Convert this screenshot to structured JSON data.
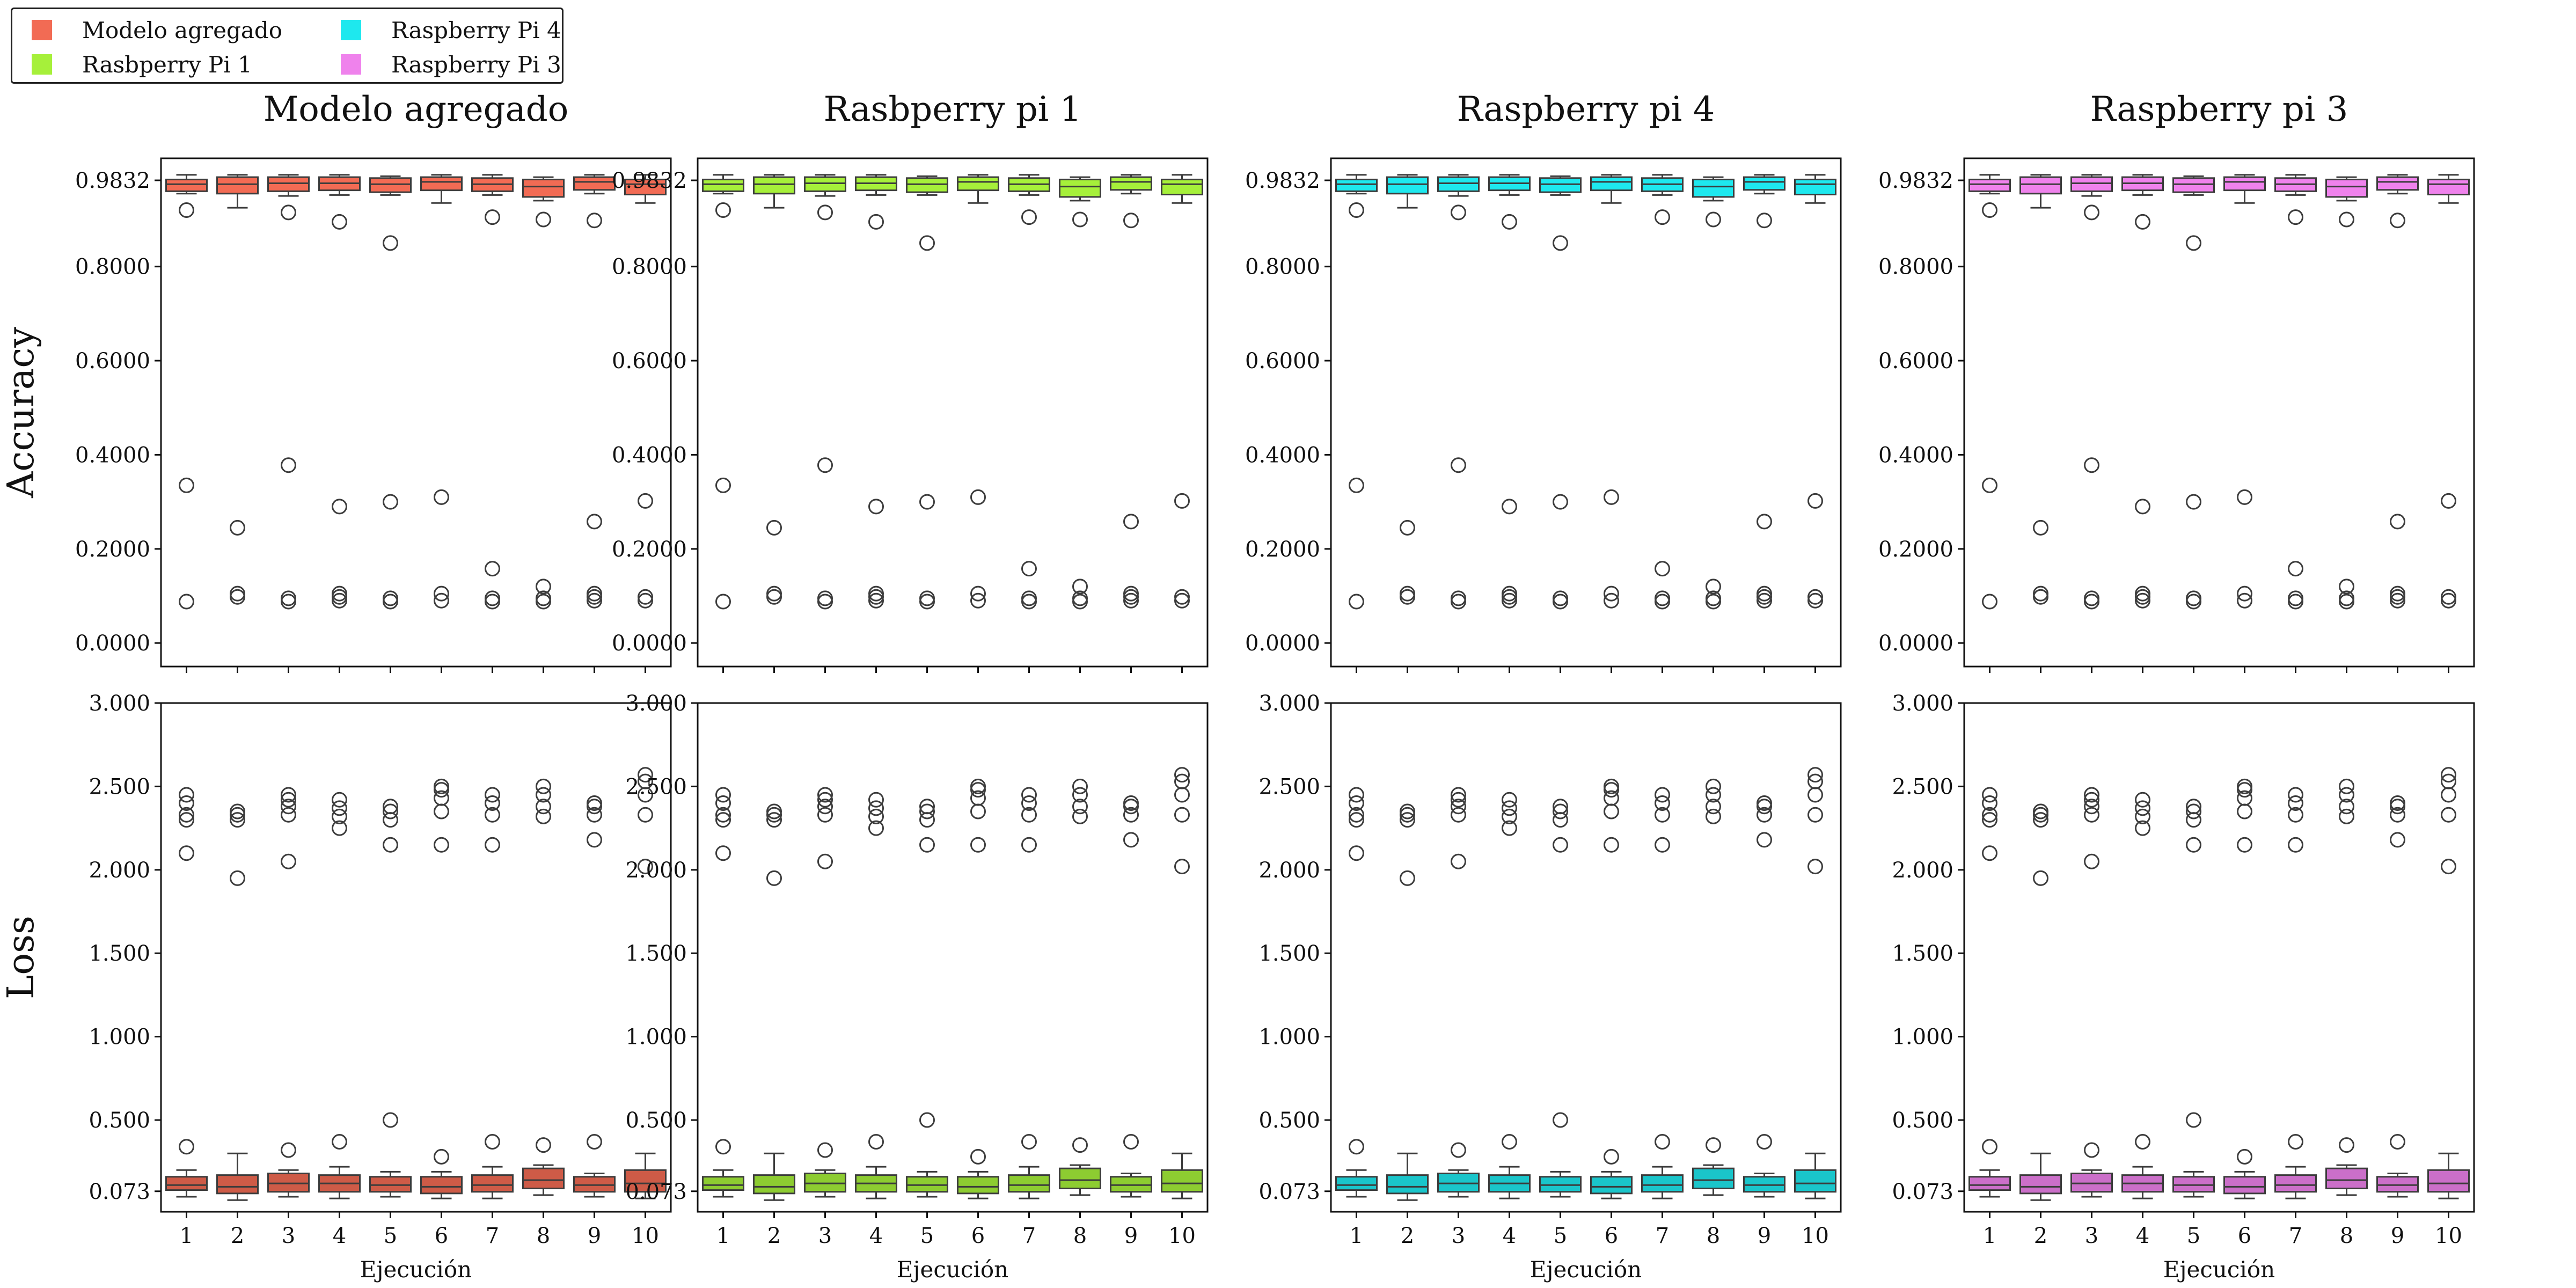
{
  "legend": {
    "items": [
      {
        "label": "Modelo agregado",
        "color": "#f26b54"
      },
      {
        "label": "Rasbperry Pi 1",
        "color": "#a6f03a"
      },
      {
        "label": "Raspberry Pi 4",
        "color": "#1ee8ee"
      },
      {
        "label": "Raspberry Pi 3",
        "color": "#ef82ec"
      }
    ]
  },
  "panel_titles": [
    "Modelo agregado",
    "Rasbperry pi 1",
    "Raspberry pi 4",
    "Raspberry pi 3"
  ],
  "row_labels": [
    "Accuracy",
    "Loss"
  ],
  "xlabel": "Ejecución",
  "chart_data": {
    "type": "box",
    "categories": [
      "1",
      "2",
      "3",
      "4",
      "5",
      "6",
      "7",
      "8",
      "9",
      "10"
    ],
    "accuracy": {
      "ylim": [
        -0.05,
        1.03
      ],
      "ticks": [
        0.0,
        0.2,
        0.4,
        0.6,
        0.8,
        0.9832
      ],
      "tick_labels": [
        "0.0000",
        "0.2000",
        "0.4000",
        "0.6000",
        "0.8000",
        "0.9832"
      ],
      "boxes": [
        {
          "q1": 0.96,
          "med": 0.975,
          "q3": 0.985,
          "lo": 0.955,
          "hi": 0.995,
          "outliers": [
            0.92,
            0.335,
            0.088
          ]
        },
        {
          "q1": 0.955,
          "med": 0.975,
          "q3": 0.99,
          "lo": 0.925,
          "hi": 0.995,
          "outliers": [
            0.245,
            0.105,
            0.098
          ]
        },
        {
          "q1": 0.96,
          "med": 0.977,
          "q3": 0.99,
          "lo": 0.95,
          "hi": 0.995,
          "outliers": [
            0.915,
            0.378,
            0.095,
            0.088
          ]
        },
        {
          "q1": 0.962,
          "med": 0.977,
          "q3": 0.99,
          "lo": 0.952,
          "hi": 0.995,
          "outliers": [
            0.895,
            0.29,
            0.105,
            0.098,
            0.09
          ]
        },
        {
          "q1": 0.958,
          "med": 0.975,
          "q3": 0.988,
          "lo": 0.952,
          "hi": 0.992,
          "outliers": [
            0.85,
            0.3,
            0.095,
            0.088
          ]
        },
        {
          "q1": 0.962,
          "med": 0.98,
          "q3": 0.99,
          "lo": 0.935,
          "hi": 0.995,
          "outliers": [
            0.31,
            0.105,
            0.09
          ]
        },
        {
          "q1": 0.96,
          "med": 0.975,
          "q3": 0.988,
          "lo": 0.952,
          "hi": 0.995,
          "outliers": [
            0.905,
            0.158,
            0.095,
            0.088
          ]
        },
        {
          "q1": 0.948,
          "med": 0.97,
          "q3": 0.985,
          "lo": 0.94,
          "hi": 0.99,
          "outliers": [
            0.9,
            0.12,
            0.095,
            0.088
          ]
        },
        {
          "q1": 0.963,
          "med": 0.98,
          "q3": 0.99,
          "lo": 0.955,
          "hi": 0.995,
          "outliers": [
            0.898,
            0.258,
            0.105,
            0.098,
            0.09
          ]
        },
        {
          "q1": 0.953,
          "med": 0.975,
          "q3": 0.985,
          "lo": 0.935,
          "hi": 0.995,
          "outliers": [
            0.302,
            0.098,
            0.09
          ]
        }
      ]
    },
    "loss": {
      "ylim": [
        -0.05,
        3.0
      ],
      "ticks": [
        0.073,
        0.5,
        1.0,
        1.5,
        2.0,
        2.5,
        3.0
      ],
      "tick_labels": [
        "0.073",
        "0.500",
        "1.000",
        "1.500",
        "2.000",
        "2.500",
        "3.000"
      ],
      "boxes": [
        {
          "q1": 0.08,
          "med": 0.11,
          "q3": 0.16,
          "lo": 0.04,
          "hi": 0.2,
          "outliers": [
            0.34,
            2.1,
            2.3,
            2.33,
            2.4,
            2.45
          ]
        },
        {
          "q1": 0.06,
          "med": 0.1,
          "q3": 0.17,
          "lo": 0.02,
          "hi": 0.3,
          "outliers": [
            1.95,
            2.3,
            2.33,
            2.35
          ]
        },
        {
          "q1": 0.07,
          "med": 0.12,
          "q3": 0.18,
          "lo": 0.04,
          "hi": 0.2,
          "outliers": [
            0.32,
            2.05,
            2.33,
            2.38,
            2.42,
            2.45
          ]
        },
        {
          "q1": 0.07,
          "med": 0.12,
          "q3": 0.17,
          "lo": 0.03,
          "hi": 0.22,
          "outliers": [
            0.37,
            2.25,
            2.32,
            2.37,
            2.42
          ]
        },
        {
          "q1": 0.07,
          "med": 0.11,
          "q3": 0.16,
          "lo": 0.04,
          "hi": 0.19,
          "outliers": [
            0.5,
            2.15,
            2.3,
            2.35,
            2.38
          ]
        },
        {
          "q1": 0.06,
          "med": 0.1,
          "q3": 0.16,
          "lo": 0.03,
          "hi": 0.19,
          "outliers": [
            0.28,
            2.15,
            2.35,
            2.43,
            2.48,
            2.5
          ]
        },
        {
          "q1": 0.07,
          "med": 0.11,
          "q3": 0.17,
          "lo": 0.03,
          "hi": 0.22,
          "outliers": [
            0.37,
            2.15,
            2.33,
            2.4,
            2.45
          ]
        },
        {
          "q1": 0.09,
          "med": 0.14,
          "q3": 0.21,
          "lo": 0.05,
          "hi": 0.23,
          "outliers": [
            0.35,
            2.32,
            2.38,
            2.45,
            2.5
          ]
        },
        {
          "q1": 0.07,
          "med": 0.11,
          "q3": 0.16,
          "lo": 0.04,
          "hi": 0.18,
          "outliers": [
            0.37,
            2.18,
            2.33,
            2.38,
            2.4
          ]
        },
        {
          "q1": 0.07,
          "med": 0.12,
          "q3": 0.2,
          "lo": 0.03,
          "hi": 0.3,
          "outliers": [
            2.02,
            2.33,
            2.45,
            2.53,
            2.57
          ]
        }
      ]
    }
  }
}
